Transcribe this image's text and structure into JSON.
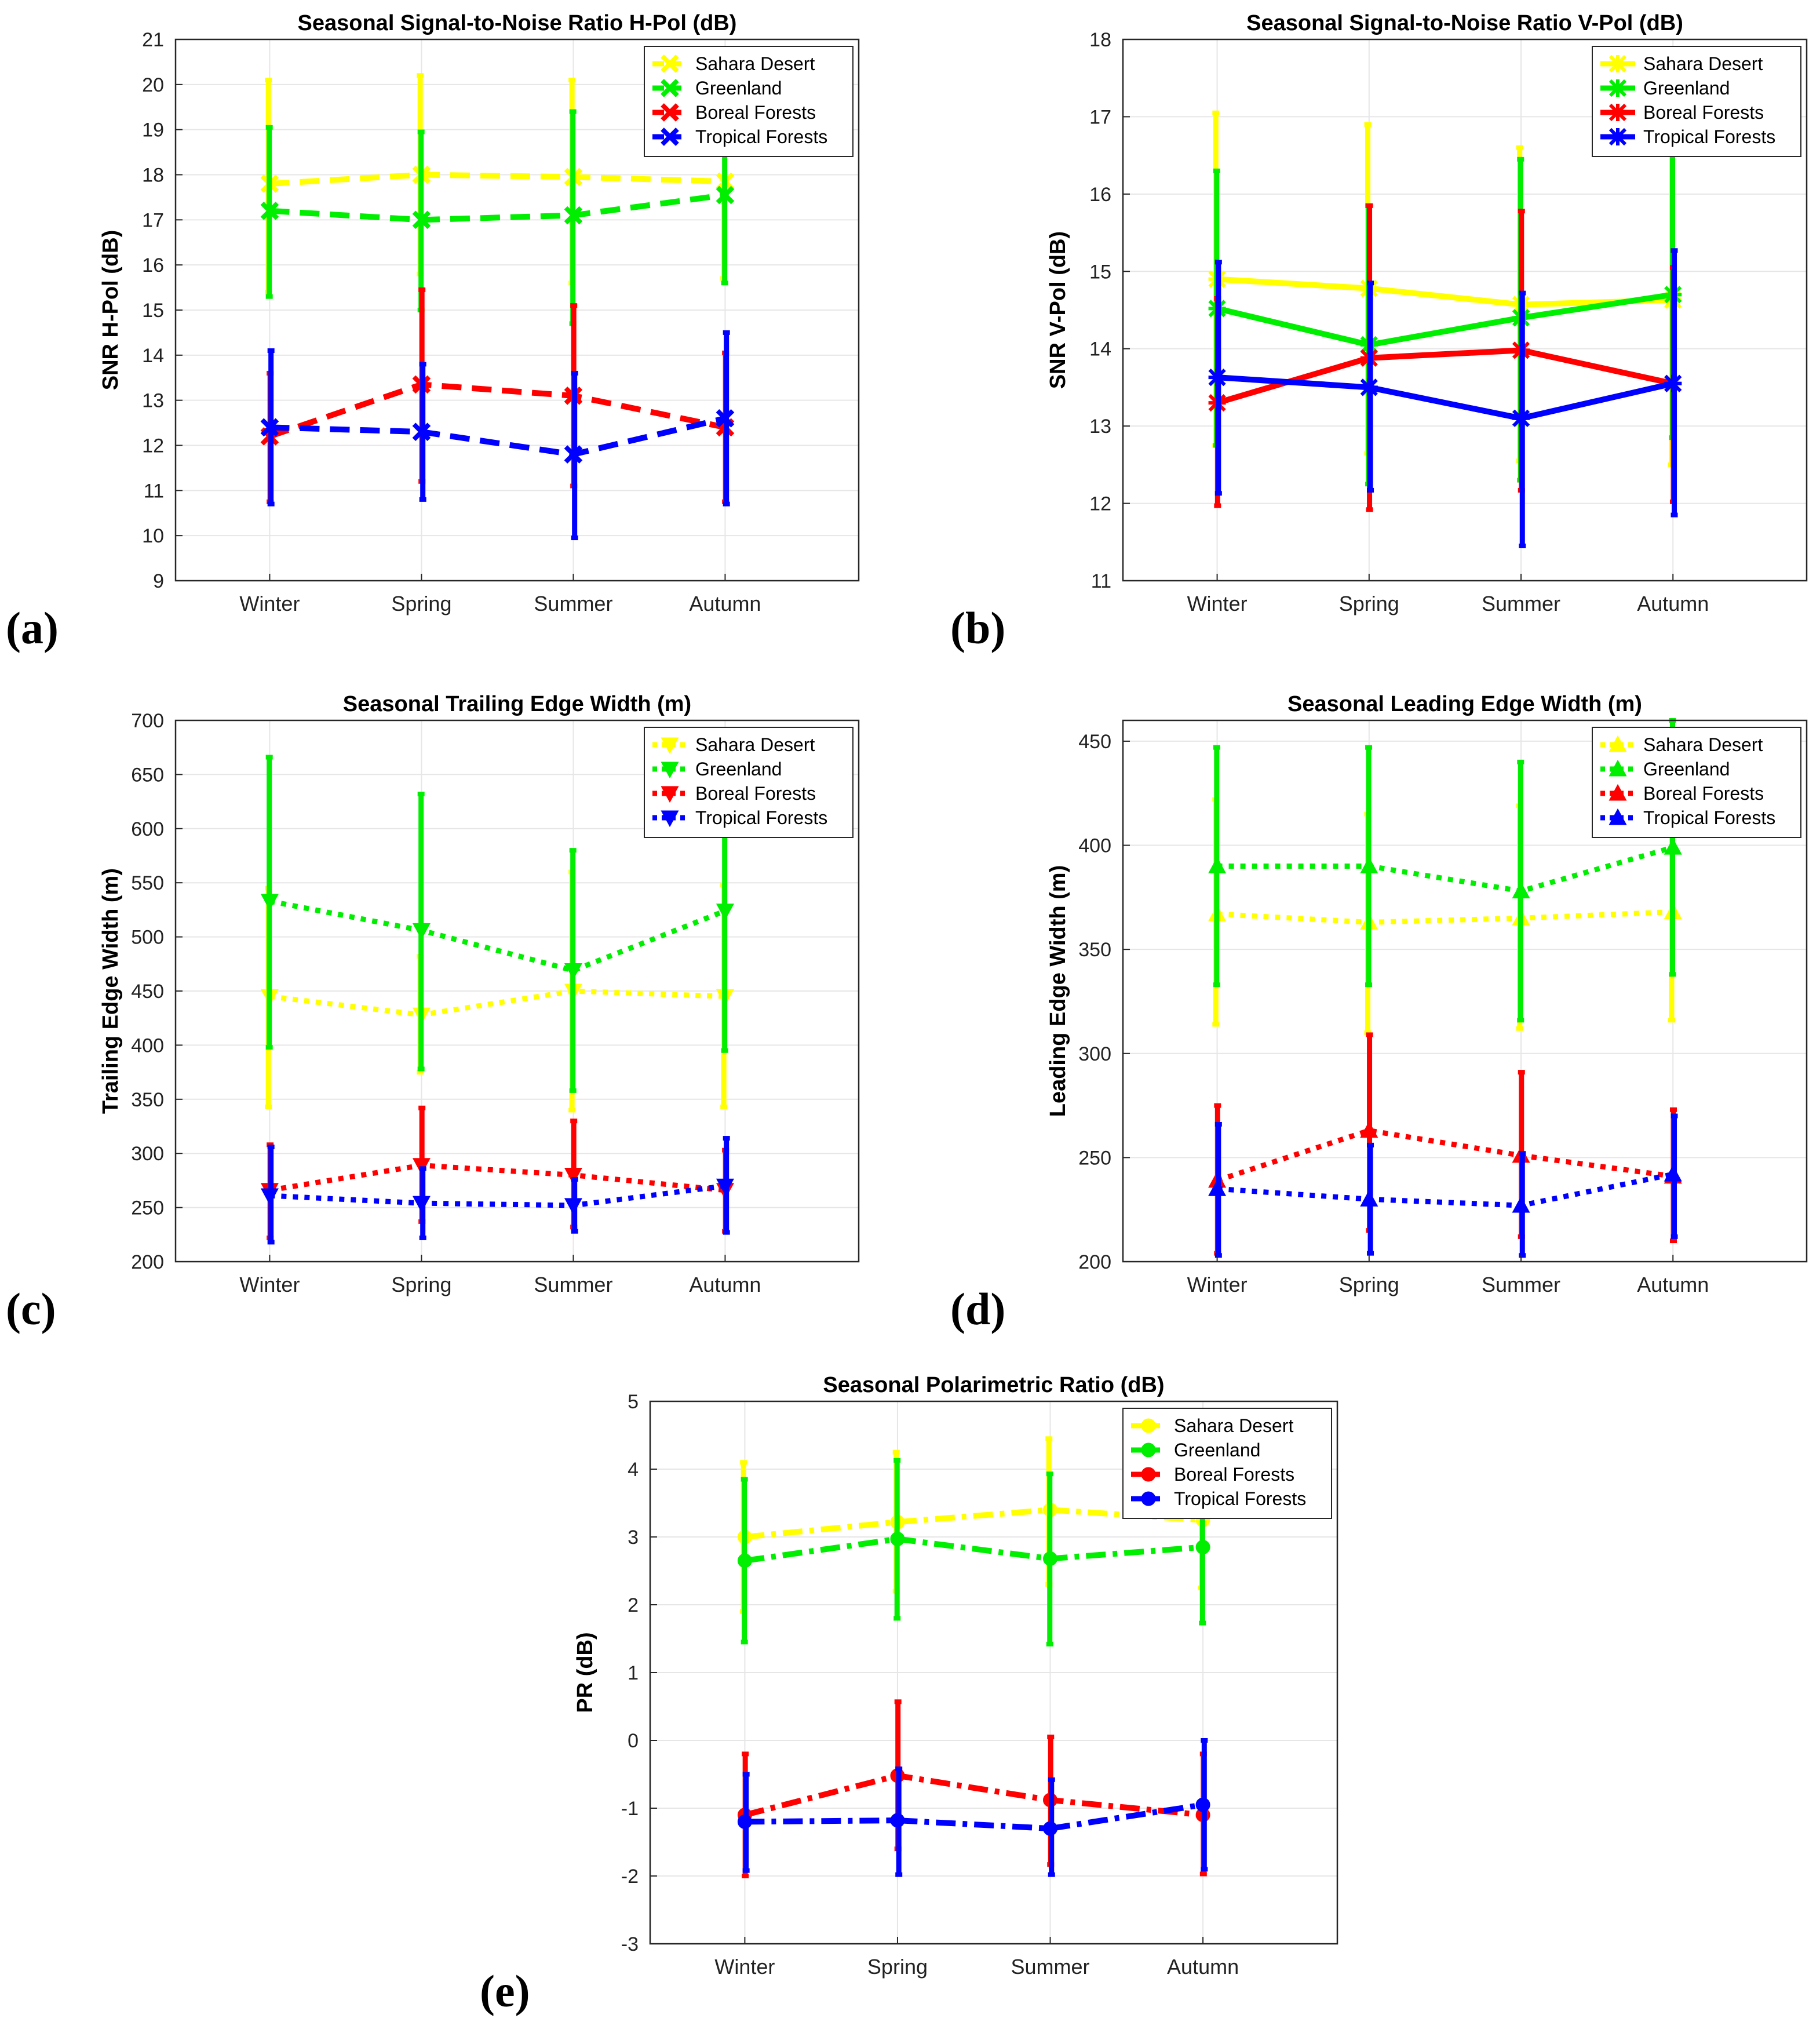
{
  "colors": {
    "sahara": "#ffff00",
    "greenland": "#00ee00",
    "boreal": "#ff0000",
    "tropical": "#0000ff",
    "grid": "#e6e6e6",
    "axis": "#262626"
  },
  "chart_data": [
    {
      "id": "a",
      "panel_label": "(a)",
      "type": "line",
      "title": "Seasonal Signal-to-Noise Ratio H-Pol (dB)",
      "xlabel": "",
      "ylabel": "SNR H-Pol (dB)",
      "categories": [
        "Winter",
        "Spring",
        "Summer",
        "Autumn"
      ],
      "ylim": [
        9,
        21
      ],
      "yticks": [
        9,
        10,
        11,
        12,
        13,
        14,
        15,
        16,
        17,
        18,
        19,
        20,
        21
      ],
      "grid": true,
      "legend_position": "top-right",
      "line_style": "dashed",
      "marker": "x",
      "series": [
        {
          "name": "Sahara Desert",
          "color_key": "sahara",
          "values": [
            17.8,
            18.0,
            17.95,
            17.85
          ],
          "err_low": [
            15.4,
            15.8,
            15.6,
            15.7
          ],
          "err_high": [
            20.1,
            20.2,
            20.1,
            17.9
          ]
        },
        {
          "name": "Greenland",
          "color_key": "greenland",
          "values": [
            17.2,
            17.0,
            17.1,
            17.55
          ],
          "err_low": [
            15.3,
            15.0,
            14.7,
            15.6
          ],
          "err_high": [
            19.05,
            18.95,
            19.4,
            18.5
          ]
        },
        {
          "name": "Boreal Forests",
          "color_key": "boreal",
          "values": [
            12.2,
            13.35,
            13.1,
            12.4
          ],
          "err_low": [
            10.75,
            11.2,
            11.1,
            10.75
          ],
          "err_high": [
            13.6,
            15.45,
            15.1,
            14.05
          ]
        },
        {
          "name": "Tropical Forests",
          "color_key": "tropical",
          "values": [
            12.4,
            12.3,
            11.8,
            12.6
          ],
          "err_low": [
            10.7,
            10.8,
            9.95,
            10.7
          ],
          "err_high": [
            14.1,
            13.8,
            13.6,
            14.5
          ]
        }
      ]
    },
    {
      "id": "b",
      "panel_label": "(b)",
      "type": "line",
      "title": "Seasonal Signal-to-Noise Ratio V-Pol (dB)",
      "xlabel": "",
      "ylabel": "SNR V-Pol (dB)",
      "categories": [
        "Winter",
        "Spring",
        "Summer",
        "Autumn"
      ],
      "ylim": [
        11,
        18
      ],
      "yticks": [
        11,
        12,
        13,
        14,
        15,
        16,
        17,
        18
      ],
      "grid": true,
      "legend_position": "top-right",
      "line_style": "solid",
      "marker": "asterisk",
      "series": [
        {
          "name": "Sahara Desert",
          "color_key": "sahara",
          "values": [
            14.9,
            14.78,
            14.57,
            14.63
          ],
          "err_low": [
            12.75,
            12.65,
            12.55,
            12.5
          ],
          "err_high": [
            17.05,
            16.9,
            16.6,
            16.75
          ]
        },
        {
          "name": "Greenland",
          "color_key": "greenland",
          "values": [
            14.52,
            14.05,
            14.4,
            14.7
          ],
          "err_low": [
            12.75,
            12.25,
            12.3,
            12.85
          ],
          "err_high": [
            16.3,
            15.85,
            16.45,
            16.55
          ]
        },
        {
          "name": "Boreal Forests",
          "color_key": "boreal",
          "values": [
            13.3,
            13.88,
            13.98,
            13.55
          ],
          "err_low": [
            11.97,
            11.92,
            12.17,
            12.02
          ],
          "err_high": [
            14.65,
            15.85,
            15.78,
            15.05
          ]
        },
        {
          "name": "Tropical Forests",
          "color_key": "tropical",
          "values": [
            13.63,
            13.5,
            13.1,
            13.55
          ],
          "err_low": [
            12.13,
            12.17,
            11.45,
            11.85
          ],
          "err_high": [
            15.12,
            14.85,
            14.72,
            15.27
          ]
        }
      ]
    },
    {
      "id": "c",
      "panel_label": "(c)",
      "type": "line",
      "title": "Seasonal Trailing Edge Width (m)",
      "xlabel": "",
      "ylabel": "Trailing Edge Width (m)",
      "categories": [
        "Winter",
        "Spring",
        "Summer",
        "Autumn"
      ],
      "ylim": [
        200,
        700
      ],
      "yticks": [
        200,
        250,
        300,
        350,
        400,
        450,
        500,
        550,
        600,
        650,
        700
      ],
      "grid": true,
      "legend_position": "top-right",
      "line_style": "dotted",
      "marker": "triangle-down",
      "series": [
        {
          "name": "Sahara Desert",
          "color_key": "sahara",
          "values": [
            445,
            428,
            450,
            445
          ],
          "err_low": [
            343,
            375,
            340,
            343
          ],
          "err_high": [
            545,
            482,
            560,
            548
          ]
        },
        {
          "name": "Greenland",
          "color_key": "greenland",
          "values": [
            533,
            506,
            469,
            524
          ],
          "err_low": [
            398,
            378,
            358,
            395
          ],
          "err_high": [
            666,
            632,
            580,
            655
          ]
        },
        {
          "name": "Boreal Forests",
          "color_key": "boreal",
          "values": [
            266,
            289,
            280,
            266
          ],
          "err_low": [
            222,
            237,
            232,
            228
          ],
          "err_high": [
            308,
            342,
            330,
            303
          ]
        },
        {
          "name": "Tropical Forests",
          "color_key": "tropical",
          "values": [
            261,
            254,
            252,
            270
          ],
          "err_low": [
            218,
            222,
            228,
            227
          ],
          "err_high": [
            306,
            286,
            276,
            314
          ]
        }
      ]
    },
    {
      "id": "d",
      "panel_label": "(d)",
      "type": "line",
      "title": "Seasonal Leading Edge Width (m)",
      "xlabel": "",
      "ylabel": "Leading Edge Width (m)",
      "categories": [
        "Winter",
        "Spring",
        "Summer",
        "Autumn"
      ],
      "ylim": [
        200,
        460
      ],
      "yticks": [
        200,
        250,
        300,
        350,
        400,
        450
      ],
      "grid": true,
      "legend_position": "top-right",
      "line_style": "dotted",
      "marker": "triangle-up",
      "series": [
        {
          "name": "Sahara Desert",
          "color_key": "sahara",
          "values": [
            367,
            363,
            365,
            368
          ],
          "err_low": [
            314,
            310,
            312,
            316
          ],
          "err_high": [
            422,
            415,
            419,
            420
          ]
        },
        {
          "name": "Greenland",
          "color_key": "greenland",
          "values": [
            390,
            390,
            378,
            399
          ],
          "err_low": [
            333,
            333,
            316,
            338
          ],
          "err_high": [
            447,
            447,
            440,
            460
          ]
        },
        {
          "name": "Boreal Forests",
          "color_key": "boreal",
          "values": [
            239,
            263,
            251,
            241
          ],
          "err_low": [
            204,
            215,
            212,
            210
          ],
          "err_high": [
            275,
            309,
            291,
            273
          ]
        },
        {
          "name": "Tropical Forests",
          "color_key": "tropical",
          "values": [
            235,
            230,
            227,
            242
          ],
          "err_low": [
            203,
            204,
            203,
            212
          ],
          "err_high": [
            266,
            256,
            252,
            270
          ]
        }
      ]
    },
    {
      "id": "e",
      "panel_label": "(e)",
      "type": "line",
      "title": "Seasonal Polarimetric Ratio (dB)",
      "xlabel": "",
      "ylabel": "PR (dB)",
      "categories": [
        "Winter",
        "Spring",
        "Summer",
        "Autumn"
      ],
      "ylim": [
        -3,
        5
      ],
      "yticks": [
        -3,
        -2,
        -1,
        0,
        1,
        2,
        3,
        4,
        5
      ],
      "grid": true,
      "legend_position": "top-right",
      "line_style": "dashdot",
      "marker": "circle",
      "series": [
        {
          "name": "Sahara Desert",
          "color_key": "sahara",
          "values": [
            3.0,
            3.22,
            3.4,
            3.25
          ],
          "err_low": [
            1.9,
            2.2,
            2.3,
            2.25
          ],
          "err_high": [
            4.1,
            4.25,
            4.45,
            4.2
          ]
        },
        {
          "name": "Greenland",
          "color_key": "greenland",
          "values": [
            2.65,
            2.97,
            2.68,
            2.85
          ],
          "err_low": [
            1.45,
            1.8,
            1.42,
            1.73
          ],
          "err_high": [
            3.85,
            4.13,
            3.93,
            3.97
          ]
        },
        {
          "name": "Boreal Forests",
          "color_key": "boreal",
          "values": [
            -1.1,
            -0.52,
            -0.88,
            -1.1
          ],
          "err_low": [
            -2.0,
            -1.6,
            -1.83,
            -1.97
          ],
          "err_high": [
            -0.2,
            0.57,
            0.05,
            -0.2
          ]
        },
        {
          "name": "Tropical Forests",
          "color_key": "tropical",
          "values": [
            -1.2,
            -1.18,
            -1.3,
            -0.95
          ],
          "err_low": [
            -1.92,
            -1.98,
            -1.98,
            -1.9
          ],
          "err_high": [
            -0.5,
            -0.42,
            -0.58,
            0.0
          ]
        }
      ]
    }
  ]
}
